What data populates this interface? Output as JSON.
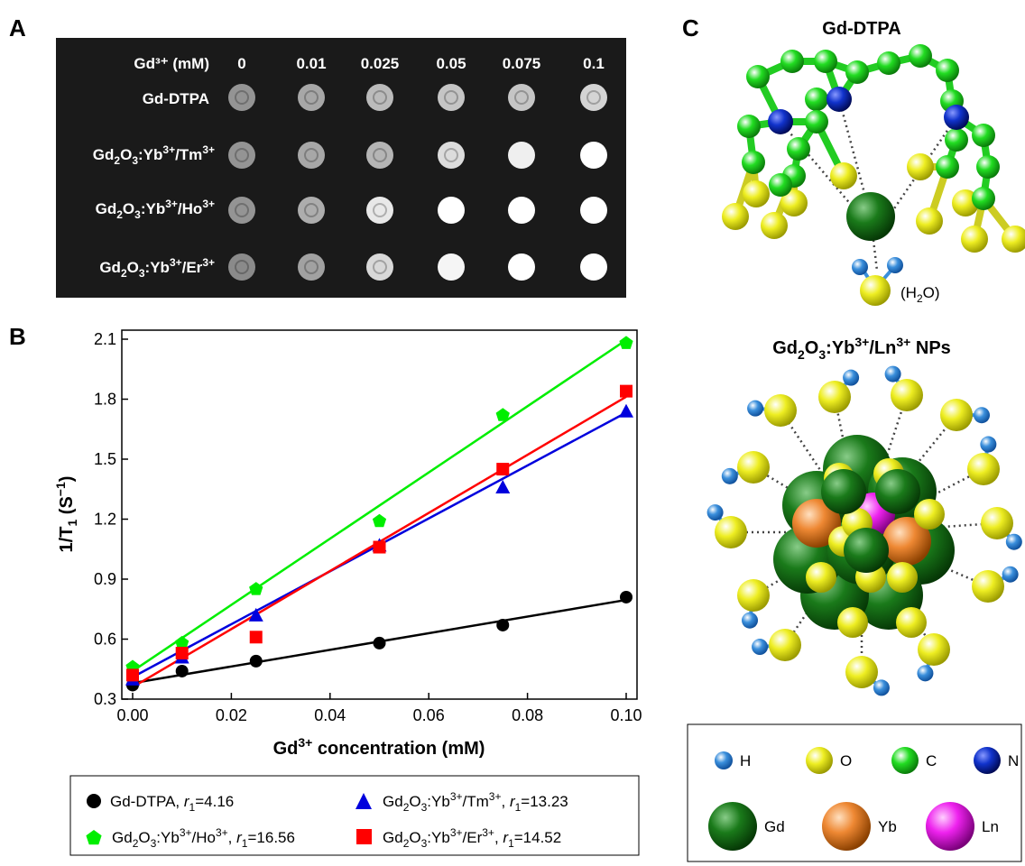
{
  "panels": {
    "a": "A",
    "b": "B",
    "c": "C"
  },
  "mri": {
    "header_label": "Gd³⁺ (mM)",
    "concentrations": [
      "0",
      "0.01",
      "0.025",
      "0.05",
      "0.075",
      "0.1"
    ],
    "rows": [
      {
        "label": "Gd-DTPA",
        "brightness": [
          0.45,
          0.55,
          0.65,
          0.7,
          0.7,
          0.78
        ]
      },
      {
        "label": "Gd2O3:Yb3+/Tm3+",
        "brightness": [
          0.45,
          0.55,
          0.62,
          0.82,
          0.92,
          1.0
        ]
      },
      {
        "label": "Gd2O3:Yb3+/Ho3+",
        "brightness": [
          0.45,
          0.58,
          0.88,
          1.0,
          1.0,
          1.0
        ]
      },
      {
        "label": "Gd2O3:Yb3+/Er3+",
        "brightness": [
          0.4,
          0.52,
          0.8,
          0.95,
          1.0,
          1.0
        ]
      }
    ]
  },
  "chart_data": {
    "type": "scatter",
    "xlabel": "Gd³⁺ concentration (mM)",
    "ylabel": "1/T₁ (S⁻¹)",
    "xlim": [
      0,
      0.1
    ],
    "ylim": [
      0.3,
      2.1
    ],
    "xticks": [
      "0.00",
      "0.02",
      "0.04",
      "0.06",
      "0.08",
      "0.10"
    ],
    "yticks": [
      "0.3",
      "0.6",
      "0.9",
      "1.2",
      "1.5",
      "1.8",
      "2.1"
    ],
    "x": [
      0,
      0.01,
      0.025,
      0.05,
      0.075,
      0.1
    ],
    "series": [
      {
        "name": "Gd-DTPA, r1=4.16",
        "marker": "circle",
        "color": "#000000",
        "values": [
          0.37,
          0.44,
          0.49,
          0.58,
          0.67,
          0.81
        ],
        "fit": [
          0.38,
          0.796
        ]
      },
      {
        "name": "Gd2O3:Yb3+/Ho3+, r1=16.56",
        "marker": "pentagon",
        "color": "#00ee00",
        "values": [
          0.46,
          0.58,
          0.85,
          1.19,
          1.72,
          2.08
        ],
        "fit": [
          0.44,
          2.096
        ]
      },
      {
        "name": "Gd2O3:Yb3+/Tm3+, r1=13.23",
        "marker": "triangle",
        "color": "#0000dd",
        "values": [
          0.4,
          0.51,
          0.72,
          1.07,
          1.36,
          1.74
        ],
        "fit": [
          0.41,
          1.733
        ]
      },
      {
        "name": "Gd2O3:Yb3+/Er3+, r1=14.52",
        "marker": "square",
        "color": "#ff0000",
        "values": [
          0.42,
          0.53,
          0.61,
          1.06,
          1.45,
          1.84
        ],
        "fit": [
          0.36,
          1.812
        ]
      }
    ],
    "legend_position": "bottom"
  },
  "molecules": {
    "dtpa_title": "Gd-DTPA",
    "water_label": "(H2O)",
    "np_title": "Gd2O3:Yb3+/Ln3+ NPs"
  },
  "element_legend": [
    {
      "label": "H",
      "color": "#3a8fdc"
    },
    {
      "label": "O",
      "color": "#eeee22"
    },
    {
      "label": "C",
      "color": "#22dd22"
    },
    {
      "label": "N",
      "color": "#1133cc"
    },
    {
      "label": "Gd",
      "color": "#1a7a1a"
    },
    {
      "label": "Yb",
      "color": "#ee8833"
    },
    {
      "label": "Ln",
      "color": "#ee22ee"
    }
  ]
}
